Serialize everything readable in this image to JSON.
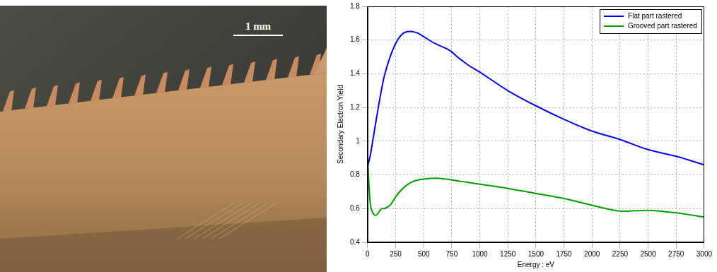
{
  "photo": {
    "scale_bar_label": "1 mm"
  },
  "chart_data": {
    "type": "line",
    "x_label": "Energy : eV",
    "y_label": "Secondary Electron Yield",
    "x": [
      0,
      25,
      50,
      75,
      100,
      125,
      150,
      200,
      250,
      300,
      350,
      400,
      450,
      500,
      600,
      700,
      750,
      800,
      900,
      1000,
      1250,
      1500,
      1750,
      2000,
      2250,
      2500,
      2750,
      3000
    ],
    "series": [
      {
        "name": "Flat part rastered",
        "color": "#0000ff",
        "values": [
          0.85,
          0.92,
          1.02,
          1.12,
          1.22,
          1.31,
          1.39,
          1.5,
          1.58,
          1.63,
          1.65,
          1.65,
          1.64,
          1.62,
          1.58,
          1.55,
          1.53,
          1.5,
          1.45,
          1.41,
          1.3,
          1.21,
          1.13,
          1.06,
          1.01,
          0.95,
          0.91,
          0.86
        ]
      },
      {
        "name": "Grooved part rastered",
        "color": "#00a000",
        "values": [
          0.9,
          0.62,
          0.57,
          0.56,
          0.58,
          0.6,
          0.6,
          0.62,
          0.67,
          0.71,
          0.74,
          0.76,
          0.77,
          0.775,
          0.78,
          0.775,
          0.77,
          0.765,
          0.755,
          0.745,
          0.72,
          0.69,
          0.66,
          0.62,
          0.585,
          0.59,
          0.575,
          0.55
        ]
      }
    ],
    "xlim": [
      0,
      3000
    ],
    "xticks": [
      0,
      250,
      500,
      750,
      1000,
      1250,
      1500,
      1750,
      2000,
      2250,
      2500,
      2750,
      3000
    ],
    "ylim": [
      0.4,
      1.8
    ],
    "yticks": [
      0.4,
      0.6,
      0.8,
      1,
      1.2,
      1.4,
      1.6,
      1.8
    ],
    "grid": true,
    "legend": "upper right"
  }
}
